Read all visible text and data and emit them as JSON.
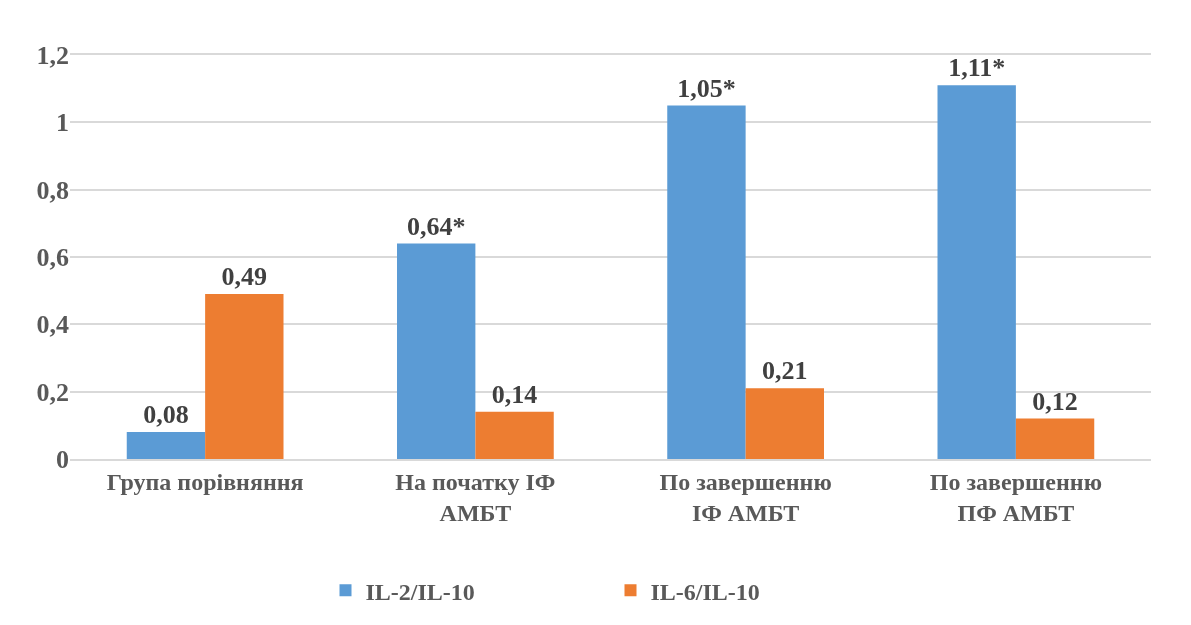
{
  "chart_data": {
    "type": "bar",
    "categories": [
      "Група порівняння",
      "На початку ІФ\nАМБТ",
      "По завершенню\nІФ АМБТ",
      "По завершенню\nПФ АМБТ"
    ],
    "series": [
      {
        "name": "IL-2/IL-10",
        "color": "#5b9bd5",
        "values": [
          0.08,
          0.64,
          1.05,
          1.11
        ],
        "value_labels": [
          "0,08",
          "0,64*",
          "1,05*",
          "1,11*"
        ]
      },
      {
        "name": "IL-6/IL-10",
        "color": "#ed7d31",
        "values": [
          0.49,
          0.14,
          0.21,
          0.12
        ],
        "value_labels": [
          "0,49",
          "0,14",
          "0,21",
          "0,12"
        ]
      }
    ],
    "ylim": [
      0,
      1.2
    ],
    "yticks": [
      0,
      {
        "value": 0.2,
        "label": "0,2"
      },
      {
        "value": 0.4,
        "label": "0,4"
      },
      {
        "value": 0.6,
        "label": "0,6"
      },
      {
        "value": 0.8,
        "label": "0,8"
      },
      1,
      {
        "value": 1.2,
        "label": "1,2"
      }
    ],
    "grid": "y",
    "legend": "bottom"
  }
}
